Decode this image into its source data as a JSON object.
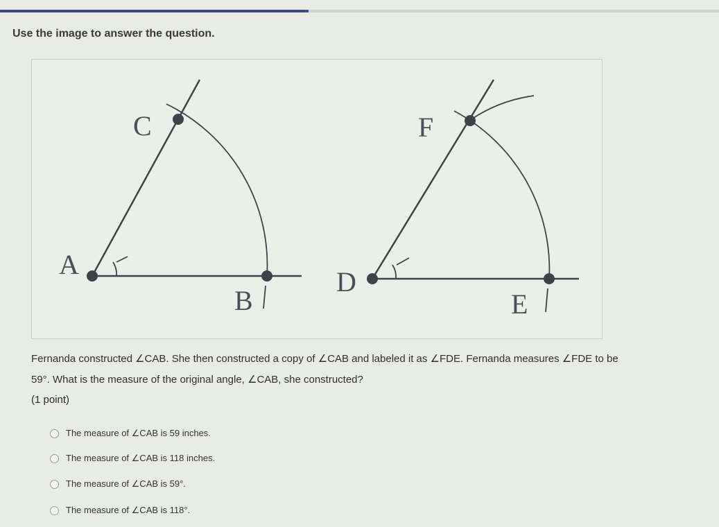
{
  "header": {
    "prompt": "Use the image to answer the question."
  },
  "figure": {
    "labels": [
      "C",
      "A",
      "B",
      "F",
      "D",
      "E"
    ]
  },
  "question": {
    "line1": "Fernanda constructed ∠CAB. She then constructed a copy of ∠CAB and labeled it as ∠FDE. Fernanda measures ∠FDE to be",
    "line2": "59°. What is the measure of the original angle, ∠CAB, she constructed?",
    "points": "(1 point)",
    "options": [
      "The measure of ∠CAB is 59 inches.",
      "The measure of ∠CAB is 118 inches.",
      "The measure of ∠CAB is 59°.",
      "The measure of ∠CAB is 118°."
    ]
  }
}
